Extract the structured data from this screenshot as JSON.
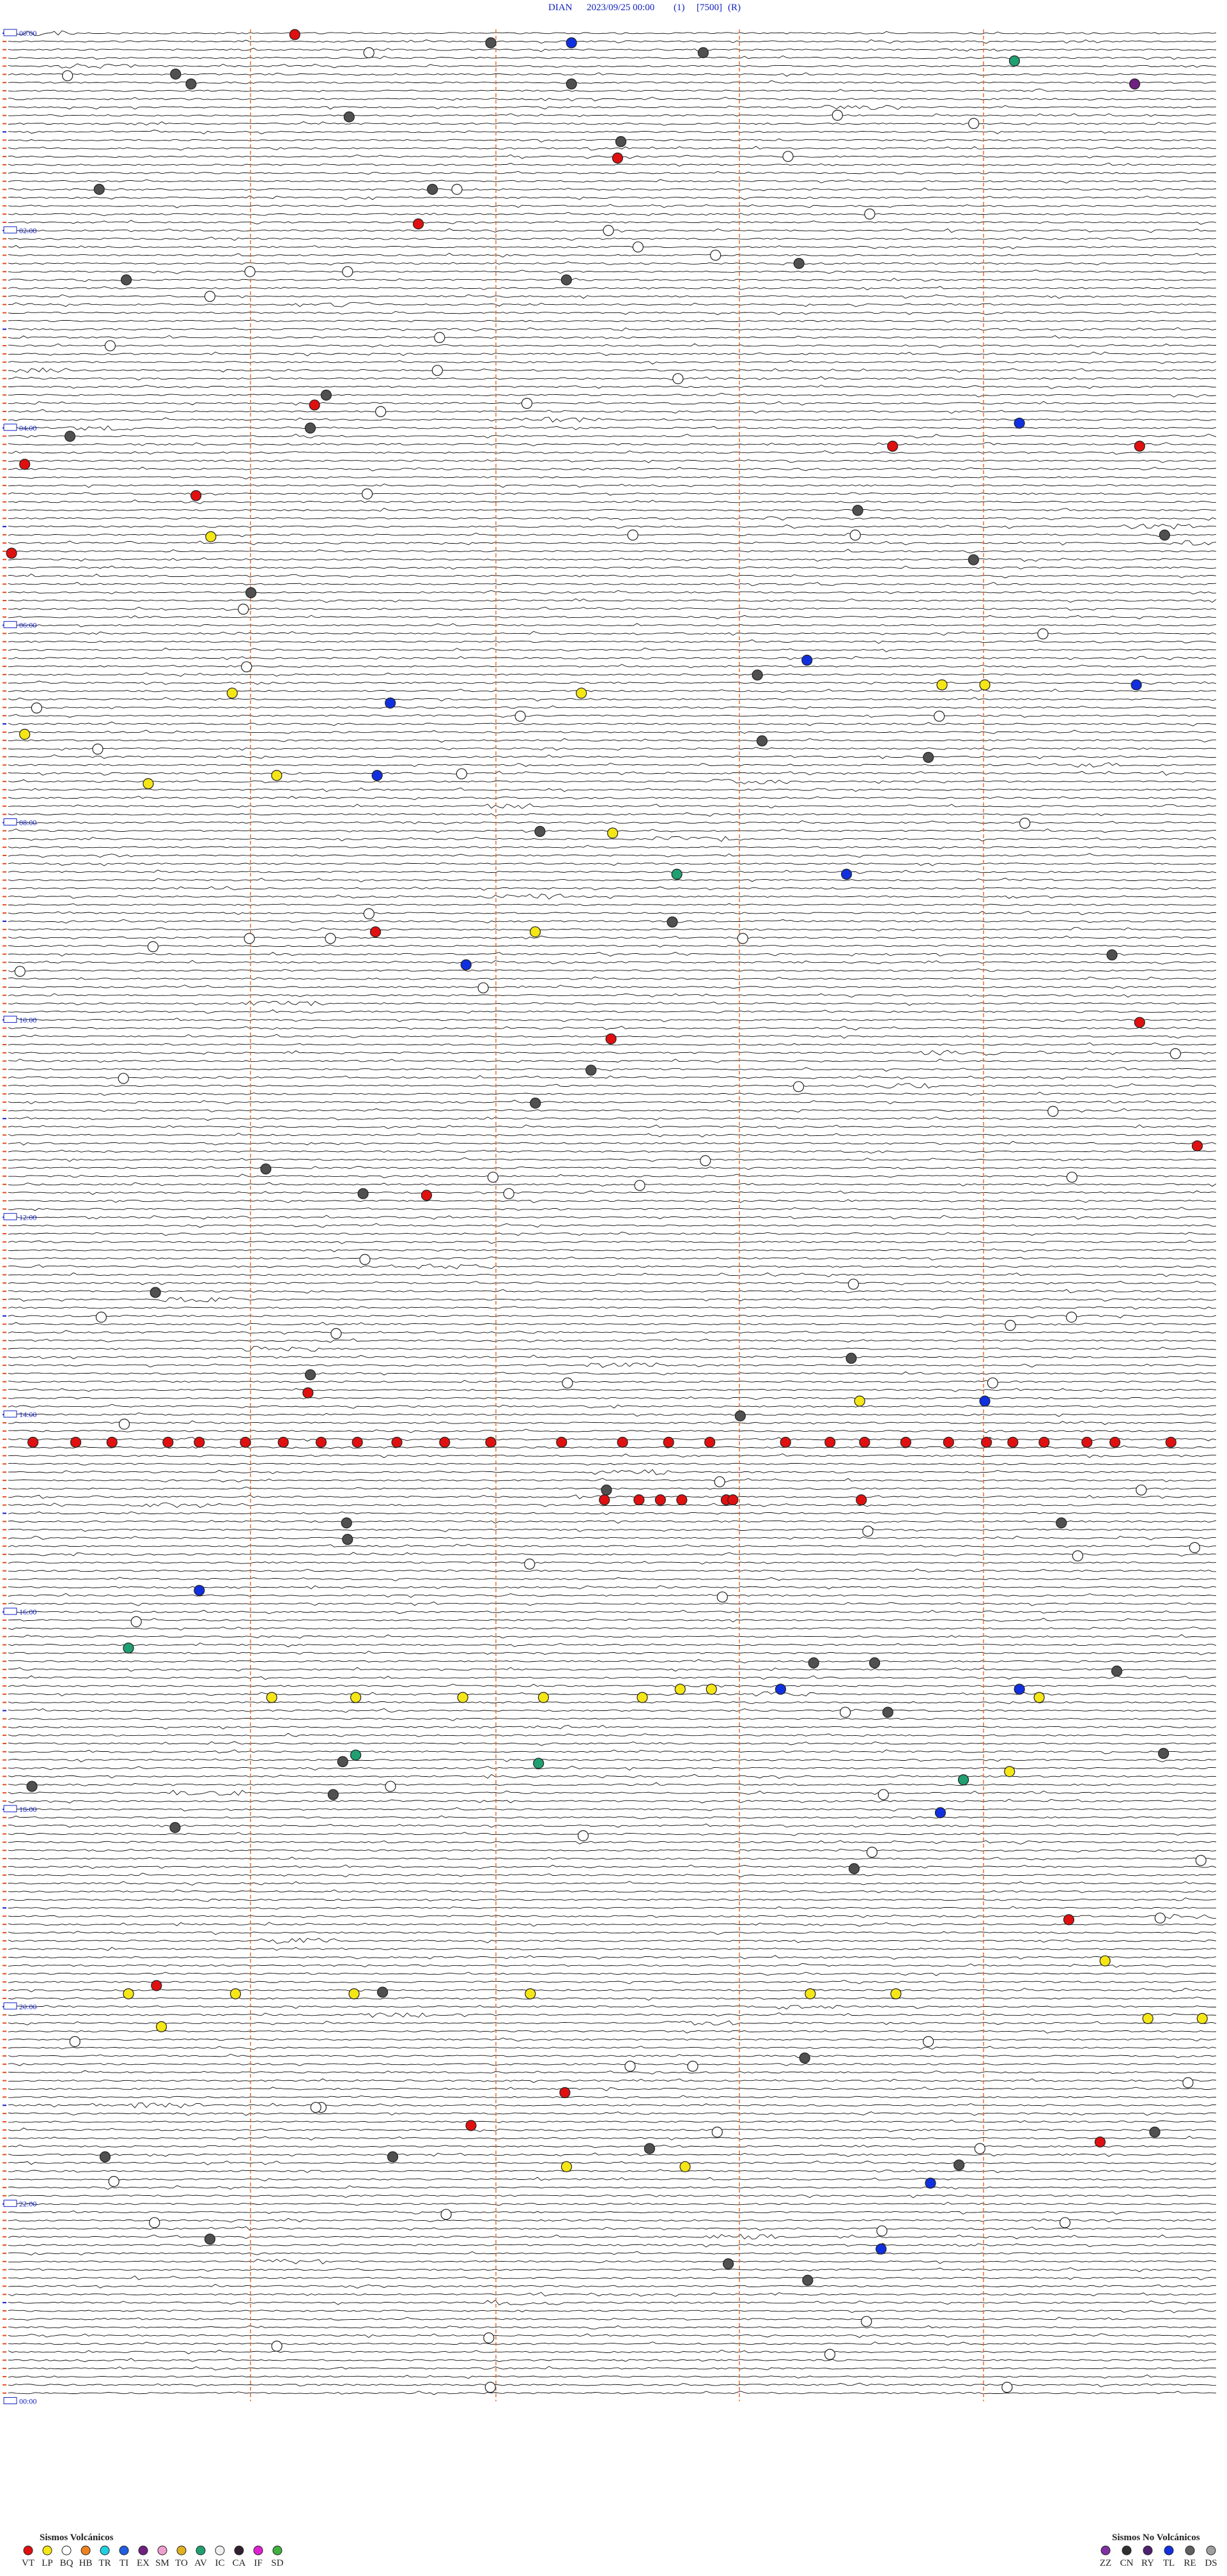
{
  "header": {
    "station": "DIAN",
    "datetime": "2023/09/25 00:00",
    "channel": "(1)",
    "scale": "[7500]",
    "mode": "(R)"
  },
  "time_labels": [
    "00:00",
    "02:00",
    "04:00",
    "06:00",
    "08:00",
    "10:00",
    "12:00",
    "14:00",
    "16:00",
    "18:00",
    "20:00",
    "22:00"
  ],
  "end_label": "00:00",
  "legend": {
    "volcanic": {
      "title": "Sismos Volcánicos",
      "items": [
        {
          "code": "VT",
          "color": "#e01010"
        },
        {
          "code": "LP",
          "color": "#f5e616"
        },
        {
          "code": "BQ",
          "color": "#ffffff"
        },
        {
          "code": "HB",
          "color": "#f08020"
        },
        {
          "code": "TR",
          "color": "#20d0e0"
        },
        {
          "code": "TI",
          "color": "#2060e0"
        },
        {
          "code": "EX",
          "color": "#702080"
        },
        {
          "code": "SM",
          "color": "#f0a0d0"
        },
        {
          "code": "TO",
          "color": "#e0b020"
        },
        {
          "code": "AV",
          "color": "#20a070"
        },
        {
          "code": "IC",
          "color": "#f0f0f0"
        },
        {
          "code": "CA",
          "color": "#302030"
        },
        {
          "code": "IF",
          "color": "#e020d0"
        },
        {
          "code": "SD",
          "color": "#40b040"
        }
      ]
    },
    "non_volcanic": {
      "title": "Sismos No Volcánicos",
      "items": [
        {
          "code": "ZZ",
          "color": "#8030a0"
        },
        {
          "code": "CN",
          "color": "#303030"
        },
        {
          "code": "RY",
          "color": "#502070"
        },
        {
          "code": "TL",
          "color": "#1030e0"
        },
        {
          "code": "RE",
          "color": "#606060"
        },
        {
          "code": "DS",
          "color": "#a0a0a0"
        }
      ]
    }
  }
}
